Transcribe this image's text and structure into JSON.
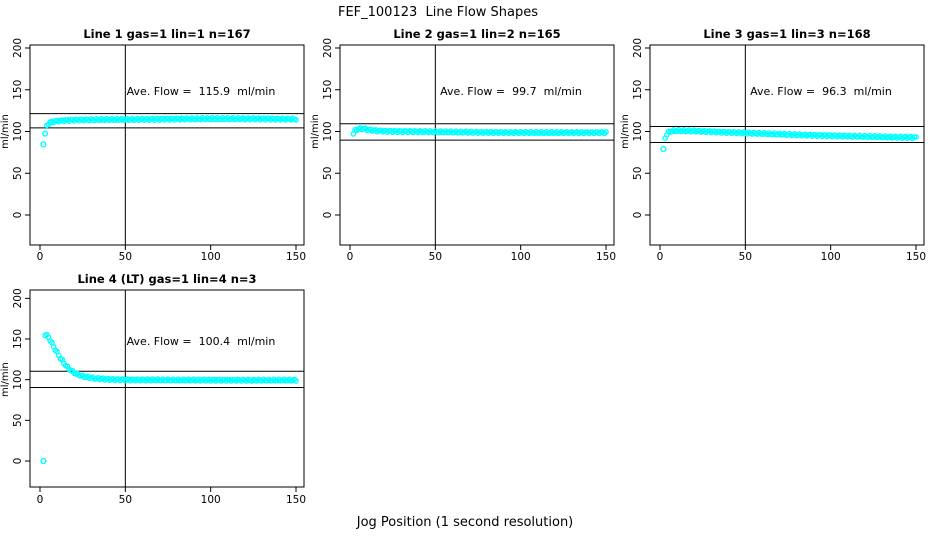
{
  "page_title": "FEF_100123  Line Flow Shapes",
  "x_axis_label": "Jog Position (1 second resolution)",
  "colors": {
    "points": "#00FFFF",
    "axis": "#000000",
    "background": "#FFFFFF"
  },
  "chart_data": [
    {
      "type": "scatter",
      "title": "Line 1 gas=1 lin=1 n=167",
      "n": 167,
      "ave_flow": 115.9,
      "ave_flow_label": "Ave. Flow =  115.9  ml/min",
      "ylabel": "ml/min",
      "xlim": [
        0,
        150
      ],
      "ylim": [
        0,
        200
      ],
      "xticks": [
        0,
        50,
        100,
        150
      ],
      "yticks": [
        0,
        50,
        100,
        150,
        200
      ],
      "ref_lines": {
        "upper": 121.4,
        "lower": 104.3,
        "vertical_x": 50
      },
      "series_keypoints": [
        [
          4,
          106.5
        ],
        [
          5,
          109.5
        ],
        [
          6,
          111
        ],
        [
          8,
          112
        ],
        [
          12,
          113
        ],
        [
          20,
          113.8
        ],
        [
          35,
          114.2
        ],
        [
          50,
          114.3
        ],
        [
          70,
          114.8
        ],
        [
          100,
          115.3
        ],
        [
          130,
          115.2
        ],
        [
          150,
          114.8
        ]
      ],
      "outliers": [
        [
          2,
          84.5
        ],
        [
          3,
          97.5
        ]
      ]
    },
    {
      "type": "scatter",
      "title": "Line 2 gas=1 lin=2 n=165",
      "n": 165,
      "ave_flow": 99.7,
      "ave_flow_label": "Ave. Flow =  99.7  ml/min",
      "ylabel": "ml/min",
      "xlim": [
        0,
        150
      ],
      "ylim": [
        0,
        200
      ],
      "xticks": [
        0,
        50,
        100,
        150
      ],
      "yticks": [
        0,
        50,
        100,
        150,
        200
      ],
      "ref_lines": {
        "upper": 109.3,
        "lower": 89.7,
        "vertical_x": 50
      },
      "series_keypoints": [
        [
          2,
          97.5
        ],
        [
          3,
          101
        ],
        [
          5,
          103.3
        ],
        [
          8,
          103.3
        ],
        [
          11,
          102
        ],
        [
          16,
          100.8
        ],
        [
          25,
          100.2
        ],
        [
          40,
          99.8
        ],
        [
          60,
          99.3
        ],
        [
          90,
          98.8
        ],
        [
          120,
          98.6
        ],
        [
          150,
          98.8
        ]
      ],
      "outliers": []
    },
    {
      "type": "scatter",
      "title": "Line 3 gas=1 lin=3 n=168",
      "n": 168,
      "ave_flow": 96.3,
      "ave_flow_label": "Ave. Flow =  96.3  ml/min",
      "ylabel": "ml/min",
      "xlim": [
        0,
        150
      ],
      "ylim": [
        0,
        200
      ],
      "xticks": [
        0,
        50,
        100,
        150
      ],
      "yticks": [
        0,
        50,
        100,
        150,
        200
      ],
      "ref_lines": {
        "upper": 106.0,
        "lower": 86.9,
        "vertical_x": 50
      },
      "series_keypoints": [
        [
          3,
          92.5
        ],
        [
          4,
          96.5
        ],
        [
          5,
          99
        ],
        [
          7,
          100.5
        ],
        [
          10,
          101
        ],
        [
          15,
          100.8
        ],
        [
          25,
          100.2
        ],
        [
          40,
          99
        ],
        [
          60,
          97.5
        ],
        [
          80,
          96
        ],
        [
          100,
          95
        ],
        [
          120,
          94
        ],
        [
          135,
          93.3
        ],
        [
          150,
          92.8
        ]
      ],
      "outliers": [
        [
          2,
          79
        ]
      ]
    },
    {
      "type": "scatter",
      "title": "Line 4 (LT) gas=1 lin=4 n=3",
      "n": 3,
      "ave_flow": 100.4,
      "ave_flow_label": "Ave. Flow =  100.4  ml/min",
      "ylabel": "ml/min",
      "xlim": [
        0,
        150
      ],
      "ylim": [
        0,
        200
      ],
      "xticks": [
        0,
        50,
        100,
        150
      ],
      "yticks": [
        0,
        50,
        100,
        150,
        200
      ],
      "ref_lines": {
        "upper": 110.4,
        "lower": 90.4,
        "vertical_x": 50
      },
      "series_keypoints": [
        [
          3,
          155.5
        ],
        [
          4,
          154.5
        ],
        [
          5,
          152
        ],
        [
          6,
          148.5
        ],
        [
          7,
          144.5
        ],
        [
          8,
          140.5
        ],
        [
          9,
          137
        ],
        [
          10,
          133.5
        ],
        [
          11,
          130
        ],
        [
          12,
          126.5
        ],
        [
          13,
          123.5
        ],
        [
          14,
          120.5
        ],
        [
          15,
          118
        ],
        [
          16,
          115.5
        ],
        [
          17,
          113.5
        ],
        [
          18,
          111.5
        ],
        [
          19,
          110
        ],
        [
          20,
          108.5
        ],
        [
          22,
          106.5
        ],
        [
          24,
          105
        ],
        [
          26,
          103.8
        ],
        [
          28,
          103
        ],
        [
          30,
          102.3
        ],
        [
          33,
          101.5
        ],
        [
          36,
          101
        ],
        [
          40,
          100.5
        ],
        [
          45,
          100.2
        ],
        [
          50,
          100
        ],
        [
          60,
          99.7
        ],
        [
          80,
          99.5
        ],
        [
          100,
          99.5
        ],
        [
          125,
          99.3
        ],
        [
          150,
          99.3
        ]
      ],
      "outliers": [
        [
          2,
          0
        ]
      ]
    }
  ]
}
